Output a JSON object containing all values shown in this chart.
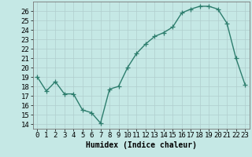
{
  "x": [
    0,
    1,
    2,
    3,
    4,
    5,
    6,
    7,
    8,
    9,
    10,
    11,
    12,
    13,
    14,
    15,
    16,
    17,
    18,
    19,
    20,
    21,
    22,
    23
  ],
  "y": [
    19.0,
    17.5,
    18.5,
    17.2,
    17.2,
    15.5,
    15.2,
    14.1,
    17.7,
    18.0,
    20.0,
    21.5,
    22.5,
    23.3,
    23.7,
    24.3,
    25.8,
    26.2,
    26.5,
    26.5,
    26.2,
    24.7,
    21.0,
    18.2
  ],
  "line_color": "#2d7d6d",
  "marker": "+",
  "marker_size": 4,
  "linewidth": 1.0,
  "bg_color": "#c5e8e5",
  "grid_color": "#b0cece",
  "xlabel": "Humidex (Indice chaleur)",
  "xlim": [
    -0.5,
    23.5
  ],
  "ylim": [
    13.5,
    27.0
  ],
  "yticks": [
    14,
    15,
    16,
    17,
    18,
    19,
    20,
    21,
    22,
    23,
    24,
    25,
    26
  ],
  "xticks": [
    0,
    1,
    2,
    3,
    4,
    5,
    6,
    7,
    8,
    9,
    10,
    11,
    12,
    13,
    14,
    15,
    16,
    17,
    18,
    19,
    20,
    21,
    22,
    23
  ],
  "xlabel_fontsize": 7,
  "tick_fontsize": 6.5,
  "xlabel_fontweight": "bold"
}
